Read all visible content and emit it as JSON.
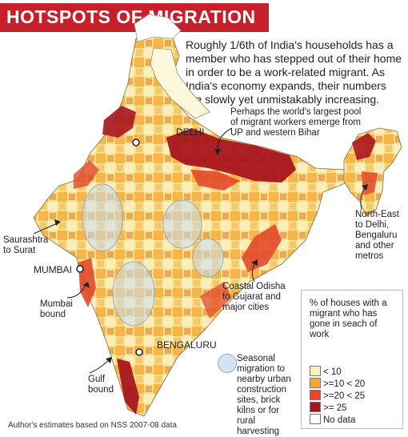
{
  "title": "HOTSPOTS OF MIGRATION",
  "intro": "Roughly 1/6th of India's households has a member who has stepped out of their home in order to be a work-related migrant. As India's economy expands, their numbers are slowly yet unmistakably increasing.",
  "annotations": {
    "up_bihar": "Perhaps the world's largest pool of migrant workers emerge from UP and western Bihar",
    "northeast": "North-East to Delhi, Bengaluru and other metros",
    "saurashtra": "Saurashtra to Surat",
    "mumbai_bound": "Mumbai bound",
    "coastal_odisha": "Coastal Odisha to Gujarat and major cities",
    "gulf_bound": "Gulf bound"
  },
  "cities": {
    "delhi": "DELHI",
    "mumbai": "MUMBAI",
    "bengaluru": "BENGALURU"
  },
  "legend": {
    "title": "% of houses with a migrant who has gone in seach of work",
    "items": [
      {
        "label": "< 10",
        "color": "#fbf1c0"
      },
      {
        "label": ">=10 < 20",
        "color": "#f5a635"
      },
      {
        "label": ">=20 < 25",
        "color": "#e2492c"
      },
      {
        "label": ">= 25",
        "color": "#a8141e"
      },
      {
        "label": "No data",
        "color": "#ffffff"
      }
    ]
  },
  "seasonal": "Seasonal migration to nearby urban construction sites, brick kilns or for rural harvesting",
  "source": "Author's estimates based on NSS 2007-08 data"
}
